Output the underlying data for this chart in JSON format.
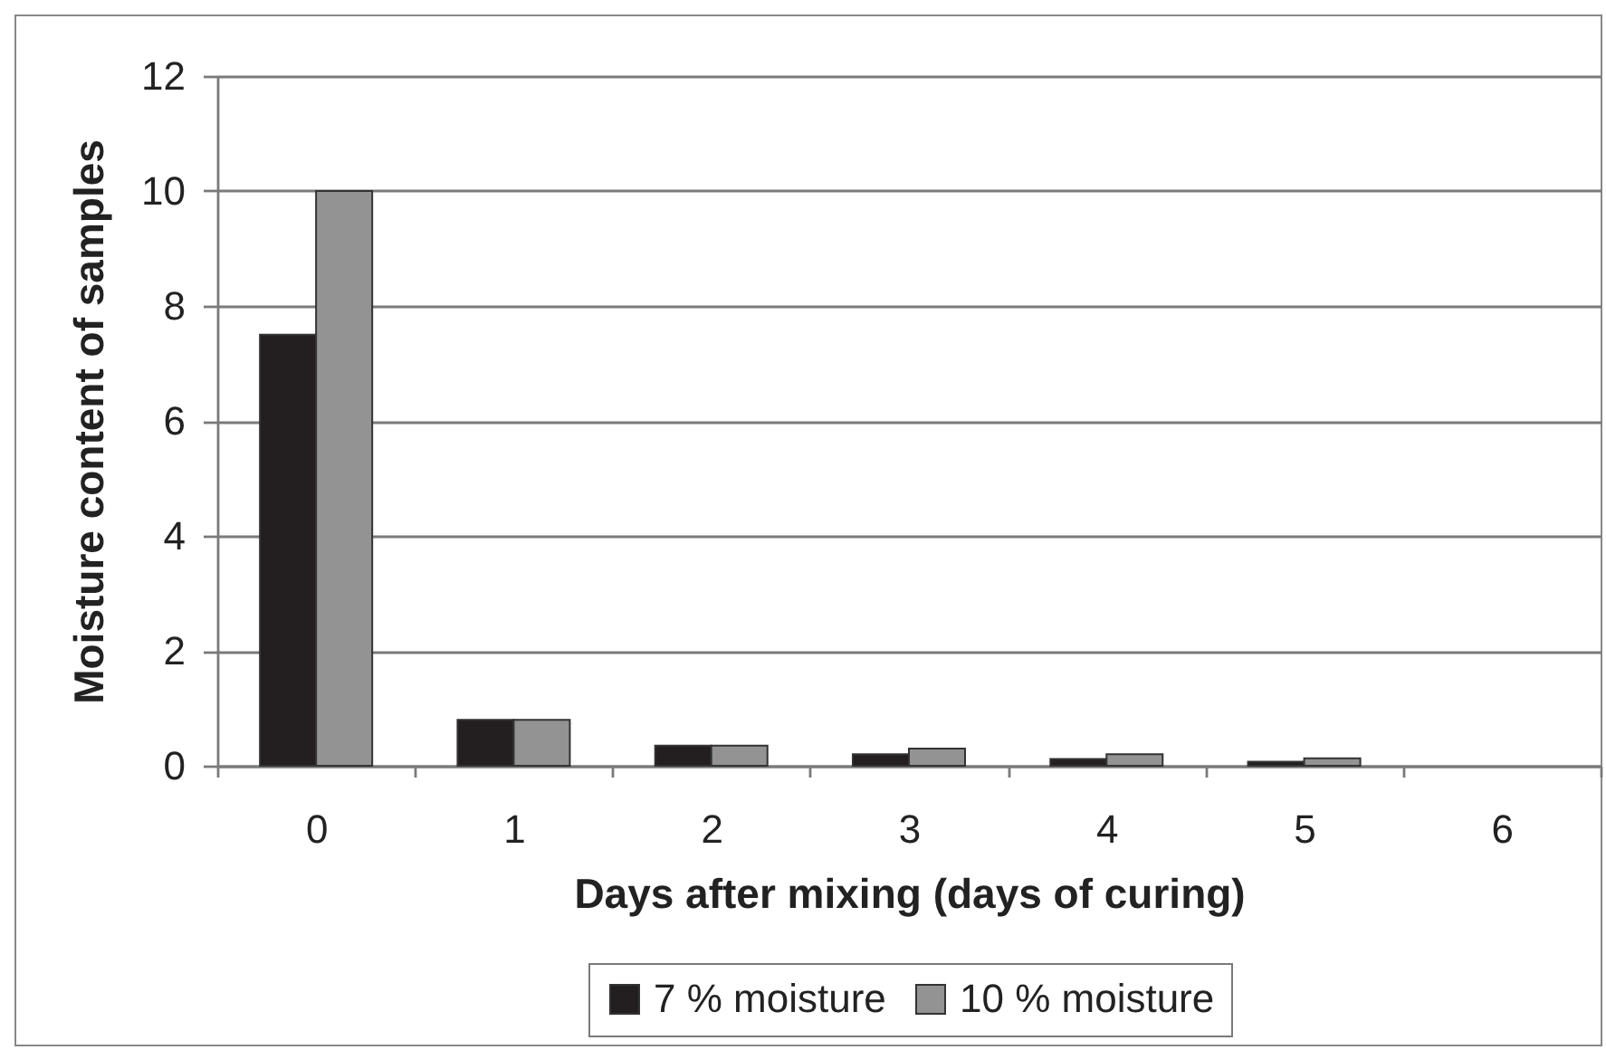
{
  "chart_data": {
    "type": "bar",
    "xlabel": "Days after mixing (days of curing)",
    "ylabel": "Moisture content of samples",
    "categories": [
      "0",
      "1",
      "2",
      "3",
      "4",
      "5",
      "6"
    ],
    "series": [
      {
        "name": "7 % moisture",
        "color": "#231f20",
        "values": [
          7.5,
          0.8,
          0.35,
          0.2,
          0.12,
          0.07,
          null
        ]
      },
      {
        "name": "10 % moisture",
        "color": "#939393",
        "values": [
          10,
          0.8,
          0.35,
          0.3,
          0.2,
          0.13,
          null
        ]
      }
    ],
    "ylim": [
      0,
      12
    ],
    "yticks": [
      0,
      2,
      4,
      6,
      8,
      10,
      12
    ],
    "grid": "y",
    "legend": "bottom"
  }
}
